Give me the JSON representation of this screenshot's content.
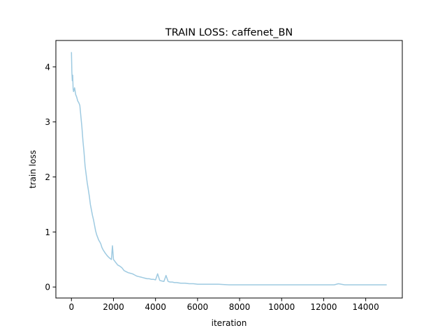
{
  "chart_data": {
    "type": "line",
    "title": "TRAIN LOSS: caffenet_BN",
    "xlabel": "iteration",
    "ylabel": "train loss",
    "xlim": [
      -740,
      15740
    ],
    "ylim": [
      -0.2,
      4.48
    ],
    "xticks": [
      0,
      2000,
      4000,
      6000,
      8000,
      10000,
      12000,
      14000
    ],
    "xtick_labels": [
      "0",
      "2000",
      "4000",
      "6000",
      "8000",
      "10000",
      "12000",
      "14000"
    ],
    "yticks": [
      0,
      1,
      2,
      3,
      4
    ],
    "ytick_labels": [
      "0",
      "1",
      "2",
      "3",
      "4"
    ],
    "grid": false,
    "legend": "none",
    "series": [
      {
        "color": "#9ecae1",
        "x": [
          0,
          20,
          40,
          60,
          80,
          100,
          150,
          200,
          250,
          300,
          350,
          400,
          450,
          500,
          550,
          600,
          650,
          700,
          750,
          800,
          850,
          900,
          950,
          1000,
          1050,
          1100,
          1150,
          1200,
          1250,
          1300,
          1350,
          1400,
          1450,
          1500,
          1600,
          1700,
          1800,
          1900,
          1950,
          2000,
          2100,
          2200,
          2300,
          2400,
          2500,
          2600,
          2700,
          2800,
          2900,
          3000,
          3100,
          3200,
          3300,
          3400,
          3500,
          3600,
          3700,
          3800,
          3900,
          4000,
          4100,
          4200,
          4300,
          4400,
          4500,
          4600,
          4700,
          4800,
          4900,
          5000,
          5200,
          5400,
          5600,
          5800,
          6000,
          6200,
          6400,
          6600,
          6800,
          7000,
          7500,
          8000,
          8500,
          9000,
          9500,
          10000,
          10500,
          11000,
          11500,
          12000,
          12500,
          12700,
          13000,
          13500,
          14000,
          14500,
          15000
        ],
        "y": [
          4.27,
          3.9,
          3.75,
          3.85,
          3.6,
          3.55,
          3.62,
          3.5,
          3.45,
          3.38,
          3.35,
          3.3,
          3.1,
          2.9,
          2.65,
          2.45,
          2.2,
          2.05,
          1.9,
          1.78,
          1.65,
          1.5,
          1.4,
          1.3,
          1.22,
          1.12,
          1.02,
          0.95,
          0.9,
          0.85,
          0.82,
          0.78,
          0.72,
          0.68,
          0.62,
          0.57,
          0.53,
          0.5,
          0.75,
          0.5,
          0.45,
          0.4,
          0.38,
          0.35,
          0.3,
          0.28,
          0.26,
          0.25,
          0.24,
          0.22,
          0.2,
          0.19,
          0.18,
          0.17,
          0.16,
          0.15,
          0.15,
          0.14,
          0.14,
          0.13,
          0.24,
          0.12,
          0.11,
          0.1,
          0.21,
          0.1,
          0.09,
          0.09,
          0.08,
          0.08,
          0.07,
          0.07,
          0.06,
          0.06,
          0.05,
          0.05,
          0.05,
          0.05,
          0.05,
          0.05,
          0.04,
          0.04,
          0.04,
          0.04,
          0.04,
          0.04,
          0.04,
          0.04,
          0.04,
          0.04,
          0.04,
          0.06,
          0.04,
          0.04,
          0.04,
          0.04,
          0.04
        ]
      }
    ]
  }
}
